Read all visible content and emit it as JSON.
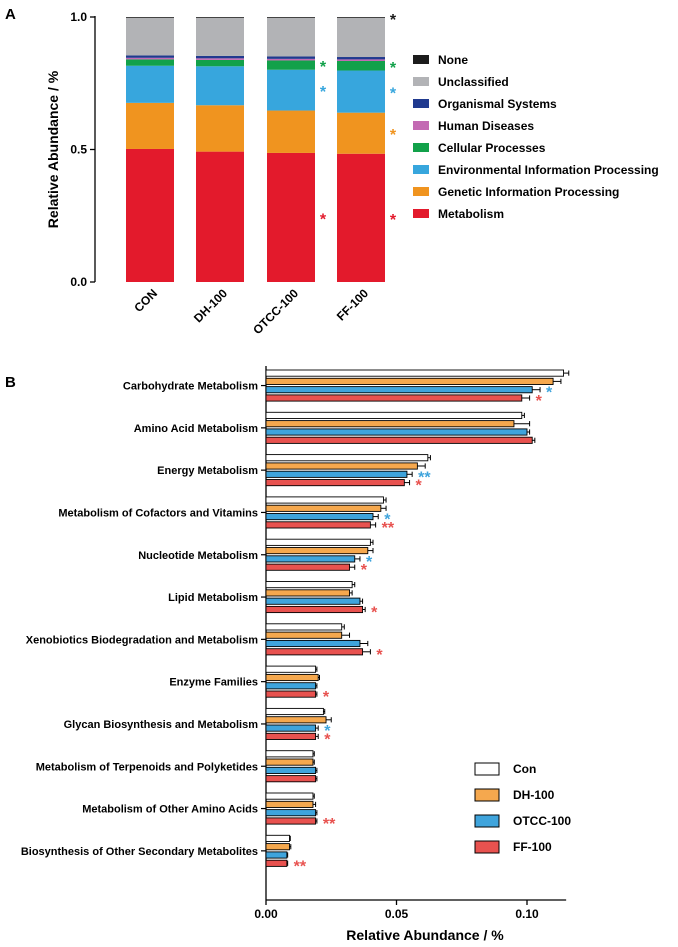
{
  "chart_data": [
    {
      "panel_label": "A",
      "type": "bar",
      "stacked": true,
      "ylabel": "Relative Abundance / %",
      "ylim": [
        0,
        1.0
      ],
      "yticks": [
        "0.0",
        "0.5",
        "1.0"
      ],
      "categories": [
        "CON",
        "DH-100",
        "OTCC-100",
        "FF-100"
      ],
      "legend_position": "right",
      "series": [
        {
          "name": "Metabolism",
          "color": "#e31a2c",
          "values": [
            0.502,
            0.492,
            0.487,
            0.484
          ]
        },
        {
          "name": "Genetic Information Processing",
          "color": "#f0941f",
          "values": [
            0.174,
            0.175,
            0.16,
            0.155
          ]
        },
        {
          "name": "Environmental Information Processing",
          "color": "#37a6dd",
          "values": [
            0.14,
            0.147,
            0.154,
            0.159
          ]
        },
        {
          "name": "Cellular Processes",
          "color": "#12a14a",
          "values": [
            0.024,
            0.024,
            0.035,
            0.036
          ]
        },
        {
          "name": "Human Diseases",
          "color": "#c36ab3",
          "values": [
            0.006,
            0.006,
            0.006,
            0.006
          ]
        },
        {
          "name": "Organismal Systems",
          "color": "#203a8f",
          "values": [
            0.009,
            0.009,
            0.009,
            0.009
          ]
        },
        {
          "name": "Unclassified",
          "color": "#b2b3b6",
          "values": [
            0.142,
            0.144,
            0.146,
            0.148
          ]
        },
        {
          "name": "None",
          "color": "#1c1c1c",
          "values": [
            0.003,
            0.003,
            0.003,
            0.003
          ]
        }
      ],
      "legend_order": [
        "None",
        "Unclassified",
        "Organismal Systems",
        "Human Diseases",
        "Cellular Processes",
        "Environmental Information Processing",
        "Genetic Information Processing",
        "Metabolism"
      ],
      "significance_marks": [
        {
          "category": "OTCC-100",
          "series": "Cellular Processes",
          "text": "*",
          "color": "#12a14a"
        },
        {
          "category": "OTCC-100",
          "series": "Environmental Information Processing",
          "text": "*",
          "color": "#37a6dd"
        },
        {
          "category": "OTCC-100",
          "series": "Metabolism",
          "text": "*",
          "color": "#e31a2c"
        },
        {
          "category": "FF-100",
          "series": "None",
          "text": "*",
          "color": "#1c1c1c"
        },
        {
          "category": "FF-100",
          "series": "Cellular Processes",
          "text": "*",
          "color": "#12a14a"
        },
        {
          "category": "FF-100",
          "series": "Environmental Information Processing",
          "text": "*",
          "color": "#37a6dd"
        },
        {
          "category": "FF-100",
          "series": "Genetic Information Processing",
          "text": "*",
          "color": "#f0941f"
        },
        {
          "category": "FF-100",
          "series": "Metabolism",
          "text": "*",
          "color": "#e31a2c"
        }
      ]
    },
    {
      "panel_label": "B",
      "type": "bar",
      "orientation": "horizontal",
      "xlabel": "Relative Abundance / %",
      "xlim": [
        0,
        0.115
      ],
      "xticks": [
        "0.00",
        "0.05",
        "0.10"
      ],
      "legend_position": "bottom-right",
      "categories": [
        "Carbohydrate Metabolism",
        "Amino Acid Metabolism",
        "Energy Metabolism",
        "Metabolism of Cofactors and Vitamins",
        "Nucleotide Metabolism",
        "Lipid Metabolism",
        "Xenobiotics Biodegradation and Metabolism",
        "Enzyme Families",
        "Glycan Biosynthesis and Metabolism",
        "Metabolism of Terpenoids and Polyketides",
        "Metabolism of Other Amino Acids",
        "Biosynthesis of Other Secondary Metabolites"
      ],
      "series": [
        {
          "name": "Con",
          "color": "#ffffff",
          "values": [
            0.114,
            0.098,
            0.062,
            0.045,
            0.04,
            0.033,
            0.029,
            0.019,
            0.022,
            0.018,
            0.018,
            0.009
          ],
          "errors": [
            0.002,
            0.001,
            0.001,
            0.001,
            0.001,
            0.001,
            0.001,
            0.0005,
            0.0005,
            0.0005,
            0.0005,
            0.0003
          ]
        },
        {
          "name": "DH-100",
          "color": "#f5a84e",
          "values": [
            0.11,
            0.095,
            0.058,
            0.044,
            0.039,
            0.032,
            0.029,
            0.02,
            0.023,
            0.018,
            0.018,
            0.009
          ],
          "errors": [
            0.003,
            0.006,
            0.003,
            0.002,
            0.002,
            0.001,
            0.003,
            0.0005,
            0.002,
            0.0005,
            0.001,
            0.0005
          ]
        },
        {
          "name": "OTCC-100",
          "color": "#3fa4dc",
          "values": [
            0.102,
            0.1,
            0.054,
            0.041,
            0.034,
            0.036,
            0.036,
            0.019,
            0.019,
            0.019,
            0.019,
            0.008
          ],
          "errors": [
            0.003,
            0.001,
            0.002,
            0.002,
            0.002,
            0.001,
            0.003,
            0.0005,
            0.001,
            0.0005,
            0.0005,
            0.0003
          ]
        },
        {
          "name": "FF-100",
          "color": "#e8524f",
          "values": [
            0.098,
            0.102,
            0.053,
            0.04,
            0.032,
            0.037,
            0.037,
            0.019,
            0.019,
            0.019,
            0.019,
            0.008
          ],
          "errors": [
            0.003,
            0.001,
            0.002,
            0.002,
            0.002,
            0.001,
            0.003,
            0.0005,
            0.001,
            0.0005,
            0.0005,
            0.0003
          ]
        }
      ],
      "significance_marks": [
        {
          "category": "Carbohydrate Metabolism",
          "series": "OTCC-100",
          "text": "*",
          "color": "#3fa4dc"
        },
        {
          "category": "Carbohydrate Metabolism",
          "series": "FF-100",
          "text": "*",
          "color": "#e8524f"
        },
        {
          "category": "Energy Metabolism",
          "series": "OTCC-100",
          "text": "**",
          "color": "#3fa4dc"
        },
        {
          "category": "Energy Metabolism",
          "series": "FF-100",
          "text": "*",
          "color": "#e8524f"
        },
        {
          "category": "Metabolism of Cofactors and Vitamins",
          "series": "OTCC-100",
          "text": "*",
          "color": "#3fa4dc"
        },
        {
          "category": "Metabolism of Cofactors and Vitamins",
          "series": "FF-100",
          "text": "**",
          "color": "#e8524f"
        },
        {
          "category": "Nucleotide Metabolism",
          "series": "OTCC-100",
          "text": "*",
          "color": "#3fa4dc"
        },
        {
          "category": "Nucleotide Metabolism",
          "series": "FF-100",
          "text": "*",
          "color": "#e8524f"
        },
        {
          "category": "Lipid Metabolism",
          "series": "FF-100",
          "text": "*",
          "color": "#e8524f"
        },
        {
          "category": "Xenobiotics Biodegradation and Metabolism",
          "series": "FF-100",
          "text": "*",
          "color": "#e8524f"
        },
        {
          "category": "Enzyme Families",
          "series": "FF-100",
          "text": "*",
          "color": "#e8524f"
        },
        {
          "category": "Glycan Biosynthesis and Metabolism",
          "series": "OTCC-100",
          "text": "*",
          "color": "#3fa4dc"
        },
        {
          "category": "Glycan Biosynthesis and Metabolism",
          "series": "FF-100",
          "text": "*",
          "color": "#e8524f"
        },
        {
          "category": "Metabolism of Other Amino Acids",
          "series": "FF-100",
          "text": "**",
          "color": "#e8524f"
        },
        {
          "category": "Biosynthesis of Other Secondary Metabolites",
          "series": "FF-100",
          "text": "**",
          "color": "#e8524f"
        }
      ]
    }
  ]
}
